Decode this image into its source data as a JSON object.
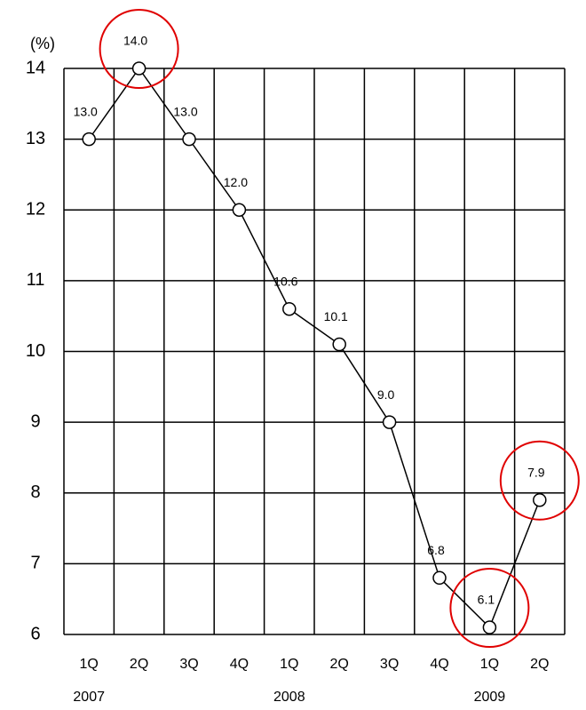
{
  "chart_data": {
    "type": "line",
    "y_axis_label": "(%)",
    "categories": [
      "1Q",
      "2Q",
      "3Q",
      "4Q",
      "1Q",
      "2Q",
      "3Q",
      "4Q",
      "1Q",
      "2Q"
    ],
    "year_labels": [
      "2007",
      null,
      null,
      null,
      "2008",
      null,
      null,
      null,
      "2009",
      null
    ],
    "values": [
      13.0,
      14.0,
      13.0,
      12.0,
      10.6,
      10.1,
      9.0,
      6.8,
      6.1,
      7.9
    ],
    "value_labels": [
      "13.0",
      "14.0",
      "13.0",
      "12.0",
      "10.6",
      "10.1",
      "9.0",
      "6.8",
      "6.1",
      "7.9"
    ],
    "color": "#000000",
    "highlights": [
      1,
      8,
      9
    ],
    "highlight_color": "#e00000",
    "ylim": [
      6,
      14
    ],
    "yticks": [
      6,
      7,
      8,
      9,
      10,
      11,
      12,
      13,
      14
    ],
    "grid": true
  }
}
